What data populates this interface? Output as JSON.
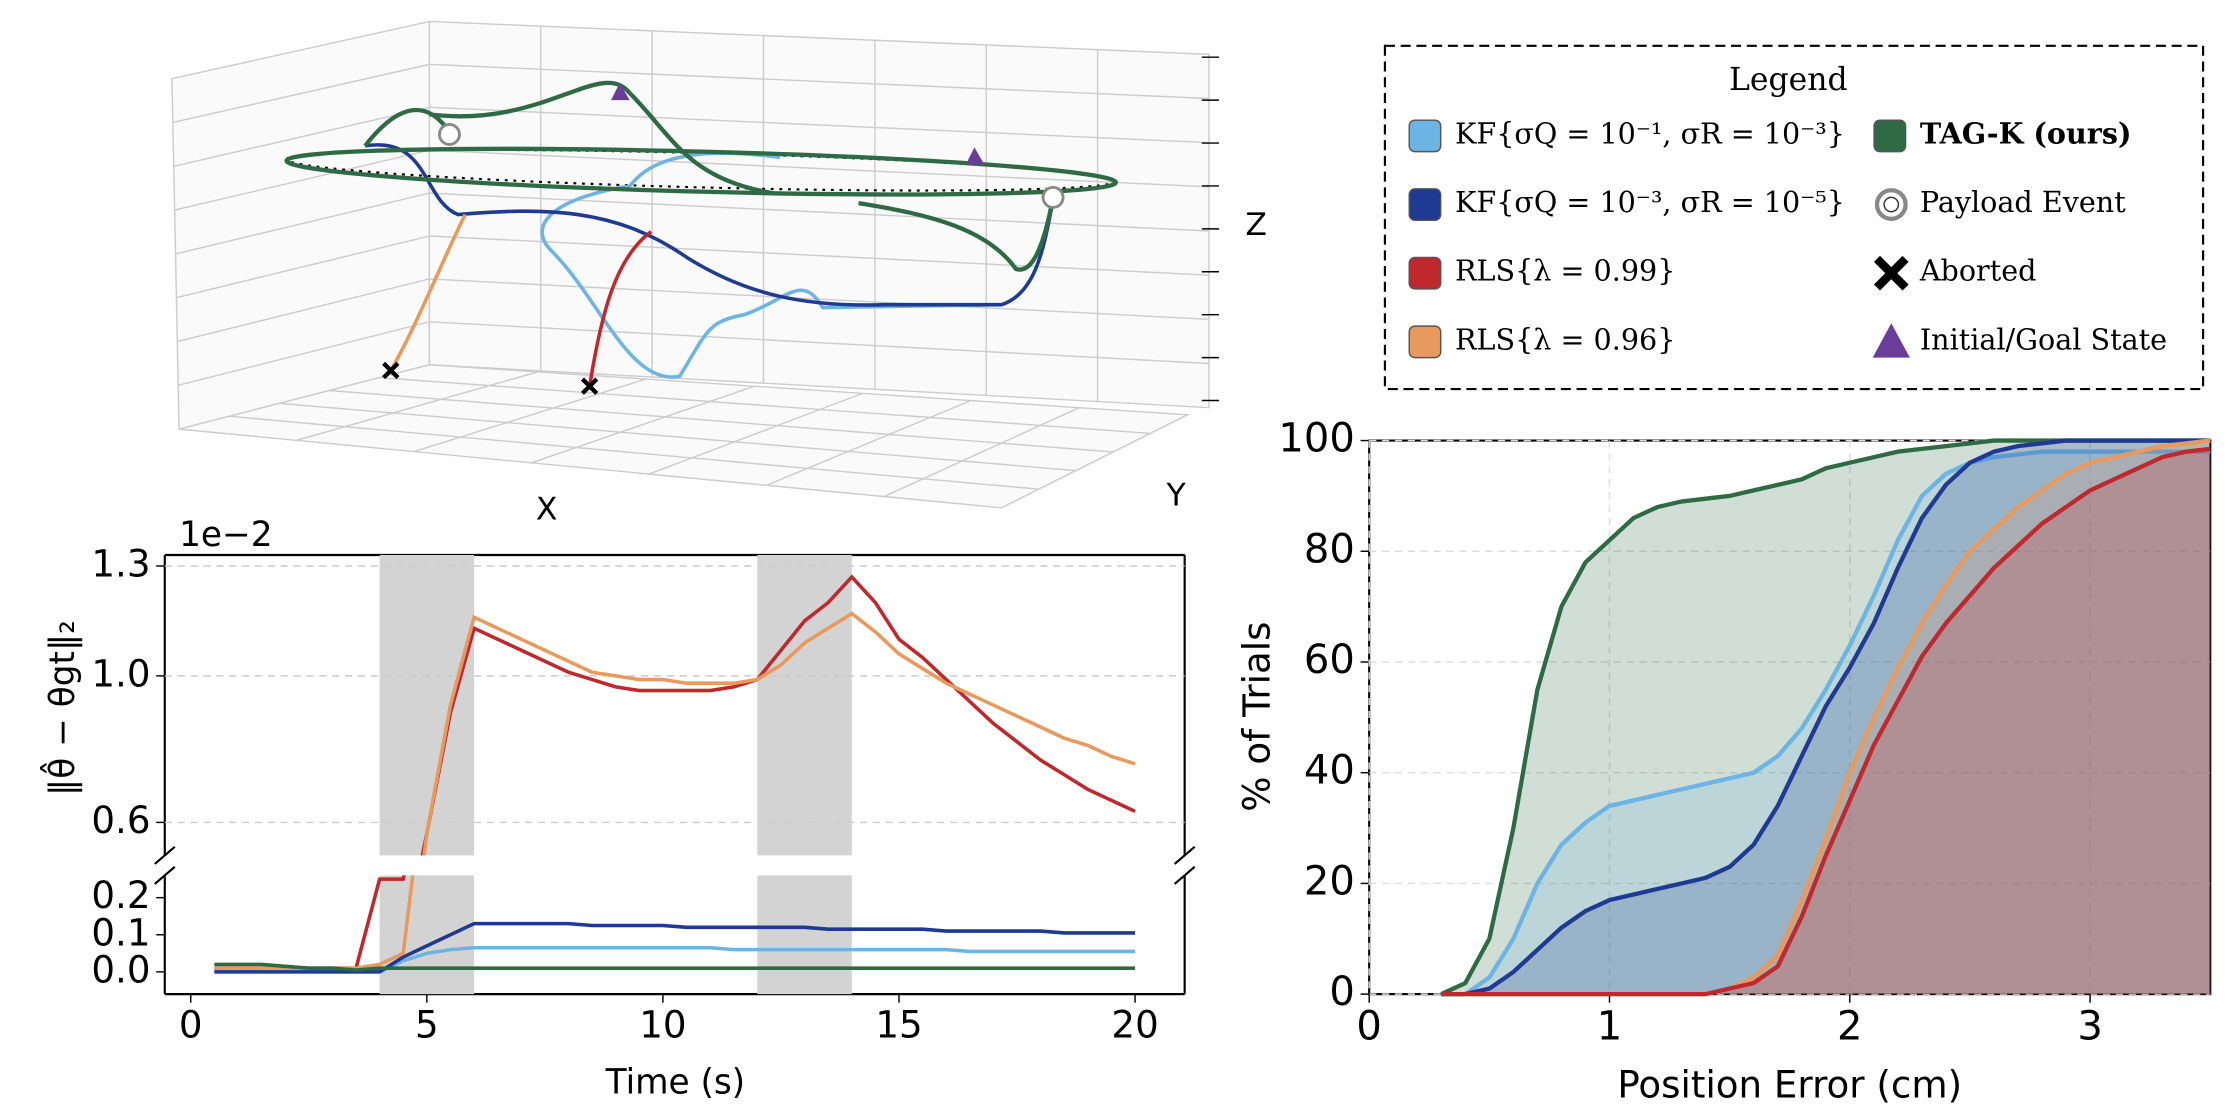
{
  "chart_data": [
    {
      "type": "trajectory3d",
      "xlabel": "X",
      "ylabel": "Y",
      "zlabel": "Z",
      "markers": [
        {
          "name": "Payload Event"
        },
        {
          "name": "Aborted"
        },
        {
          "name": "Initial/Goal State"
        }
      ]
    },
    {
      "type": "line",
      "legend_title": "Legend",
      "offset_label": "1e−2",
      "xlabel": "Time (s)",
      "ylabel": "‖θ̂ − θgt‖₂",
      "x": [
        0.5,
        1,
        1.5,
        2,
        2.5,
        3,
        3.5,
        4,
        4.5,
        5,
        5.5,
        6,
        6.5,
        7,
        7.5,
        8,
        8.5,
        9,
        9.5,
        10,
        10.5,
        11,
        11.5,
        12,
        12.5,
        13,
        13.5,
        14,
        14.5,
        15,
        15.5,
        16,
        16.5,
        17,
        17.5,
        18,
        18.5,
        19,
        19.5,
        20
      ],
      "series": [
        {
          "name": "KF{σQ = 10⁻¹, σR = 10⁻³}",
          "color": "#6cb4e4",
          "values": [
            0,
            0,
            0,
            0,
            0,
            0,
            0,
            0,
            0.03,
            0.05,
            0.06,
            0.065,
            0.065,
            0.065,
            0.065,
            0.065,
            0.065,
            0.065,
            0.065,
            0.065,
            0.065,
            0.065,
            0.06,
            0.06,
            0.06,
            0.06,
            0.06,
            0.06,
            0.06,
            0.06,
            0.06,
            0.06,
            0.055,
            0.055,
            0.055,
            0.055,
            0.055,
            0.055,
            0.055,
            0.055
          ]
        },
        {
          "name": "KF{σQ = 10⁻³, σR = 10⁻⁵}",
          "color": "#1f3a93",
          "values": [
            0,
            0,
            0,
            0,
            0,
            0,
            0,
            0,
            0.04,
            0.07,
            0.1,
            0.13,
            0.13,
            0.13,
            0.13,
            0.13,
            0.125,
            0.125,
            0.125,
            0.125,
            0.12,
            0.12,
            0.12,
            0.12,
            0.12,
            0.12,
            0.115,
            0.115,
            0.115,
            0.115,
            0.115,
            0.11,
            0.11,
            0.11,
            0.11,
            0.11,
            0.105,
            0.105,
            0.105,
            0.105
          ]
        },
        {
          "name": "RLS{λ = 0.99}",
          "color": "#c0282d",
          "values": [
            0.01,
            0.01,
            0.01,
            0.01,
            0.01,
            0.01,
            0.01,
            0.25,
            0.25,
            0.57,
            0.9,
            1.13,
            1.1,
            1.07,
            1.04,
            1.01,
            0.99,
            0.97,
            0.96,
            0.96,
            0.96,
            0.96,
            0.97,
            0.99,
            1.07,
            1.15,
            1.2,
            1.27,
            1.2,
            1.1,
            1.05,
            0.99,
            0.93,
            0.87,
            0.82,
            0.77,
            0.73,
            0.69,
            0.66,
            0.63
          ]
        },
        {
          "name": "RLS{λ = 0.96}",
          "color": "#e89a5e",
          "values": [
            0.01,
            0.01,
            0.01,
            0.01,
            0.01,
            0.01,
            0.01,
            0.02,
            0.05,
            0.57,
            0.92,
            1.16,
            1.13,
            1.1,
            1.07,
            1.04,
            1.01,
            1.0,
            0.99,
            0.99,
            0.98,
            0.98,
            0.98,
            0.99,
            1.03,
            1.09,
            1.13,
            1.17,
            1.12,
            1.06,
            1.02,
            0.98,
            0.95,
            0.92,
            0.89,
            0.86,
            0.83,
            0.81,
            0.78,
            0.76
          ]
        },
        {
          "name": "TAG-K (ours)",
          "color": "#2e6b45",
          "values": [
            0.02,
            0.02,
            0.02,
            0.015,
            0.01,
            0.01,
            0.005,
            0.01,
            0.01,
            0.01,
            0.01,
            0.01,
            0.01,
            0.01,
            0.01,
            0.01,
            0.01,
            0.01,
            0.01,
            0.01,
            0.01,
            0.01,
            0.01,
            0.01,
            0.01,
            0.01,
            0.01,
            0.01,
            0.01,
            0.01,
            0.01,
            0.01,
            0.01,
            0.01,
            0.01,
            0.01,
            0.01,
            0.01,
            0.01,
            0.01
          ]
        }
      ],
      "xlim": [
        -0.55,
        21.05
      ],
      "xticks": [
        0,
        5,
        10,
        15,
        20
      ],
      "ylim_upper": [
        0.51,
        1.33
      ],
      "yticks_upper": [
        1.3,
        {
          "value": 1,
          "label": "1.0"
        },
        0.6
      ],
      "ylim_lower": [
        -0.06,
        0.26
      ],
      "yticks_lower": [
        {
          "value": 0,
          "label": "0.0"
        },
        0.1,
        0.2
      ],
      "shaded": [
        [
          4,
          6
        ],
        [
          12,
          14
        ]
      ],
      "grid": "y"
    },
    {
      "type": "area",
      "xlabel": "Position Error (cm)",
      "ylabel": "% of Trials",
      "x": [
        0.3,
        0.4,
        0.5,
        0.6,
        0.7,
        0.8,
        0.9,
        1.0,
        1.1,
        1.2,
        1.3,
        1.4,
        1.5,
        1.6,
        1.7,
        1.8,
        1.9,
        2.0,
        2.1,
        2.2,
        2.3,
        2.4,
        2.5,
        2.6,
        2.7,
        2.8,
        2.9,
        3.0,
        3.1,
        3.2,
        3.3,
        3.4,
        3.5
      ],
      "series": [
        {
          "color": "#2e6b45",
          "values": [
            0,
            2,
            10,
            30,
            55,
            70,
            78,
            82,
            86,
            88,
            89,
            89.5,
            90,
            91,
            92,
            93,
            95,
            96,
            97,
            98,
            98.5,
            99,
            99.5,
            100,
            100,
            100,
            100,
            100,
            100,
            100,
            100,
            100,
            100
          ]
        },
        {
          "color": "#6cb4e4",
          "values": [
            0,
            0,
            3,
            10,
            20,
            27,
            31,
            34,
            35,
            36,
            37,
            38,
            39,
            40,
            43,
            48,
            55,
            63,
            72,
            82,
            90,
            94,
            96,
            97,
            97.5,
            98,
            98,
            98,
            98,
            98,
            98,
            98,
            98
          ]
        },
        {
          "color": "#1f3a93",
          "values": [
            0,
            0,
            1,
            4,
            8,
            12,
            15,
            17,
            18,
            19,
            20,
            21,
            23,
            27,
            34,
            43,
            52,
            59,
            67,
            77,
            86,
            92,
            96,
            98,
            99,
            99.5,
            100,
            100,
            100,
            100,
            100,
            100,
            100
          ]
        },
        {
          "color": "#e89a5e",
          "values": [
            0,
            0,
            0,
            0,
            0,
            0,
            0,
            0,
            0,
            0,
            0,
            0,
            1,
            3,
            7,
            17,
            28,
            40,
            50,
            59,
            67,
            74,
            80,
            84,
            88,
            91,
            94,
            96,
            97,
            98,
            99,
            99.5,
            100
          ]
        },
        {
          "color": "#c0282d",
          "values": [
            0,
            0,
            0,
            0,
            0,
            0,
            0,
            0,
            0,
            0,
            0,
            0,
            1,
            2,
            5,
            14,
            25,
            35,
            45,
            53,
            61,
            67,
            72,
            77,
            81,
            85,
            88,
            91,
            93,
            95,
            97,
            98,
            98.5
          ]
        }
      ],
      "xlim": [
        0,
        3.5
      ],
      "xticks": [
        0,
        1,
        2,
        3
      ],
      "ylim": [
        0,
        100
      ],
      "yticks": [
        0,
        20,
        40,
        60,
        80,
        100
      ],
      "grid": "both"
    }
  ]
}
